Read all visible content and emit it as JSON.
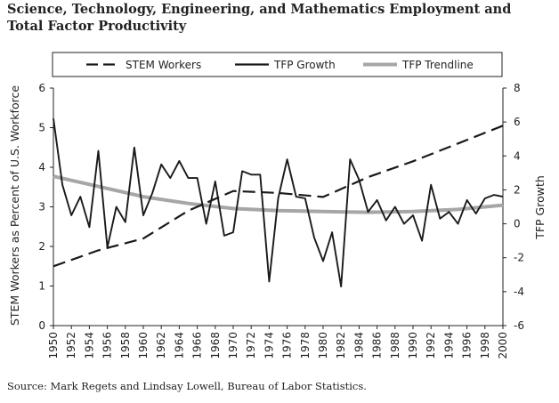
{
  "chart_data": {
    "type": "line",
    "title": "Science, Technology, Engineering, and Mathematics Employment and Total Factor Productivity",
    "source": "Source: Mark Regets and Lindsay Lowell, Bureau of Labor Statistics.",
    "ylabel_left": "STEM Workers as Percent of U.S. Workforce",
    "ylabel_right": "TFP Growth",
    "ylim_left": [
      0,
      6
    ],
    "ylim_right": [
      -6,
      8
    ],
    "yticks_left": [
      "0",
      "1",
      "2",
      "3",
      "4",
      "5",
      "6"
    ],
    "yticks_right": [
      "-6",
      "-4",
      "-2",
      "0",
      "2",
      "4",
      "6",
      "8"
    ],
    "xlim": [
      1950,
      2000
    ],
    "xticks": [
      "1950",
      "1952",
      "1954",
      "1956",
      "1958",
      "1960",
      "1962",
      "1964",
      "1966",
      "1968",
      "1970",
      "1972",
      "1974",
      "1976",
      "1978",
      "1980",
      "1982",
      "1984",
      "1986",
      "1988",
      "1990",
      "1992",
      "1994",
      "1996",
      "1998",
      "2000"
    ],
    "legend": [
      "STEM Workers",
      "TFP Growth",
      "TFP Trendline"
    ],
    "legend_position": "top",
    "grid": false,
    "series": [
      {
        "name": "STEM Workers",
        "axis": "left",
        "style": "dashed",
        "color": "#1a1a1a",
        "x": [
          1950,
          1955,
          1960,
          1965,
          1970,
          1975,
          1980,
          1985,
          1990,
          1995,
          2000
        ],
        "y": [
          1.5,
          1.9,
          2.2,
          2.9,
          3.4,
          3.35,
          3.25,
          3.75,
          4.15,
          4.6,
          5.05
        ]
      },
      {
        "name": "TFP Growth",
        "axis": "right",
        "style": "solid",
        "color": "#1a1a1a",
        "x": [
          1950,
          1951,
          1952,
          1953,
          1954,
          1955,
          1956,
          1957,
          1958,
          1959,
          1960,
          1961,
          1962,
          1963,
          1964,
          1965,
          1966,
          1967,
          1968,
          1969,
          1970,
          1971,
          1972,
          1973,
          1974,
          1975,
          1976,
          1977,
          1978,
          1979,
          1980,
          1981,
          1982,
          1983,
          1984,
          1985,
          1986,
          1987,
          1988,
          1989,
          1990,
          1991,
          1992,
          1993,
          1994,
          1995,
          1996,
          1997,
          1998,
          1999,
          2000
        ],
        "y": [
          6.2,
          2.3,
          0.5,
          1.6,
          -0.2,
          4.3,
          -1.4,
          1.0,
          0.1,
          4.5,
          0.5,
          1.8,
          3.5,
          2.7,
          3.7,
          2.7,
          2.7,
          0.0,
          2.5,
          -0.7,
          -0.5,
          3.1,
          2.9,
          2.9,
          -3.4,
          1.5,
          3.8,
          1.6,
          1.5,
          -0.8,
          -2.2,
          -0.5,
          -3.7,
          3.8,
          2.6,
          0.7,
          1.4,
          0.2,
          1.0,
          0.0,
          0.5,
          -1.0,
          2.3,
          0.3,
          0.7,
          0.0,
          1.4,
          0.6,
          1.5,
          1.7,
          1.6
        ]
      },
      {
        "name": "TFP Trendline",
        "axis": "right",
        "style": "solid",
        "color": "#a6a6a6",
        "x": [
          1950,
          1955,
          1960,
          1965,
          1970,
          1975,
          1980,
          1985,
          1990,
          1995,
          2000
        ],
        "y": [
          2.8,
          2.2,
          1.6,
          1.2,
          0.9,
          0.78,
          0.72,
          0.68,
          0.72,
          0.85,
          1.1
        ]
      }
    ]
  }
}
